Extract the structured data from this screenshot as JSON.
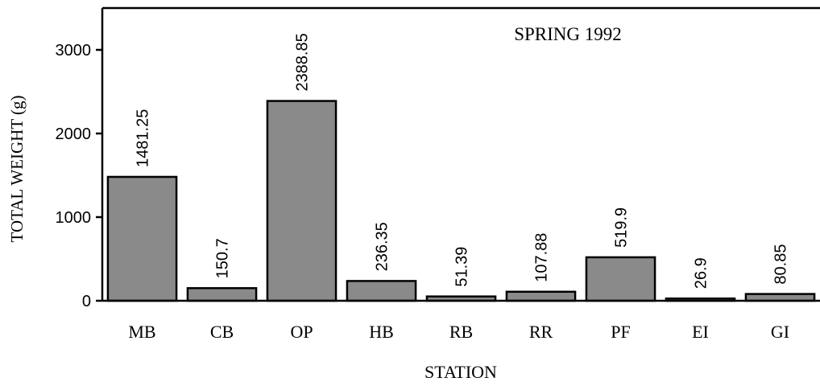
{
  "chart_data": {
    "type": "bar",
    "annotation": "SPRING 1992",
    "x_label": "STATION",
    "y_label": "TOTAL WEIGHT (g)",
    "categories": [
      "MB",
      "CB",
      "OP",
      "HB",
      "RB",
      "RR",
      "PF",
      "EI",
      "GI"
    ],
    "values": [
      1481.25,
      150.7,
      2388.85,
      236.35,
      51.39,
      107.88,
      519.9,
      26.9,
      80.85
    ],
    "color": "#8a8a8a",
    "ylim": [
      0,
      3500
    ],
    "yticks": [
      0,
      1000,
      2000,
      3000
    ],
    "grid": false
  }
}
